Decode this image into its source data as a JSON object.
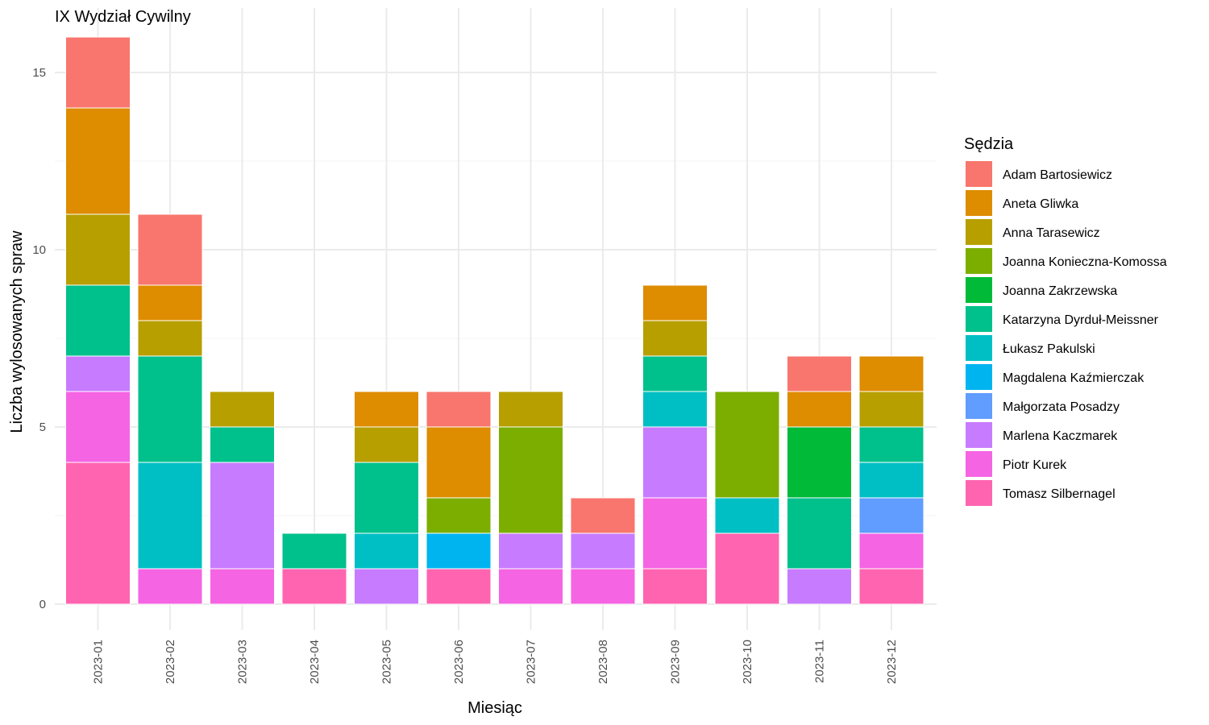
{
  "chart_data": {
    "type": "bar",
    "stacked": true,
    "title": "IX Wydział Cywilny",
    "xlabel": "Miesiąc",
    "ylabel": "Liczba wylosowanych spraw",
    "ylim": [
      0,
      16
    ],
    "yticks": [
      0,
      5,
      10,
      15
    ],
    "grid": true,
    "legend_title": "Sędzia",
    "legend_position": "right",
    "categories": [
      "2023-01",
      "2023-02",
      "2023-03",
      "2023-04",
      "2023-05",
      "2023-06",
      "2023-07",
      "2023-08",
      "2023-09",
      "2023-10",
      "2023-11",
      "2023-12"
    ],
    "series": [
      {
        "name": "Adam Bartosiewicz",
        "color": "#F8766D",
        "values": [
          2,
          2,
          0,
          0,
          0,
          1,
          0,
          1,
          0,
          0,
          1,
          0
        ]
      },
      {
        "name": "Aneta Gliwka",
        "color": "#DE8C00",
        "values": [
          3,
          1,
          0,
          0,
          1,
          2,
          0,
          0,
          1,
          0,
          1,
          1
        ]
      },
      {
        "name": "Anna Tarasewicz",
        "color": "#B79F00",
        "values": [
          2,
          1,
          1,
          0,
          1,
          0,
          1,
          0,
          1,
          0,
          0,
          1
        ]
      },
      {
        "name": "Joanna Konieczna-Komossa",
        "color": "#7CAE00",
        "values": [
          0,
          0,
          0,
          0,
          0,
          1,
          3,
          0,
          0,
          3,
          0,
          0
        ]
      },
      {
        "name": "Joanna Zakrzewska",
        "color": "#00BA38",
        "values": [
          0,
          0,
          0,
          0,
          0,
          0,
          0,
          0,
          0,
          0,
          2,
          0
        ]
      },
      {
        "name": "Katarzyna Dyrduł-Meissner",
        "color": "#00C08B",
        "values": [
          2,
          3,
          1,
          1,
          2,
          0,
          0,
          0,
          1,
          0,
          2,
          1
        ]
      },
      {
        "name": "Łukasz Pakulski",
        "color": "#00BFC4",
        "values": [
          0,
          3,
          0,
          0,
          1,
          0,
          0,
          0,
          1,
          1,
          0,
          1
        ]
      },
      {
        "name": "Magdalena Kaźmierczak",
        "color": "#00B4F0",
        "values": [
          0,
          0,
          0,
          0,
          0,
          1,
          0,
          0,
          0,
          0,
          0,
          0
        ]
      },
      {
        "name": "Małgorzata Posadzy",
        "color": "#619CFF",
        "values": [
          0,
          0,
          0,
          0,
          0,
          0,
          0,
          0,
          0,
          0,
          0,
          1
        ]
      },
      {
        "name": "Marlena Kaczmarek",
        "color": "#C77CFF",
        "values": [
          1,
          0,
          3,
          0,
          1,
          0,
          1,
          1,
          2,
          0,
          1,
          0
        ]
      },
      {
        "name": "Piotr Kurek",
        "color": "#F564E3",
        "values": [
          2,
          1,
          1,
          0,
          0,
          0,
          1,
          1,
          2,
          0,
          0,
          1
        ]
      },
      {
        "name": "Tomasz Silbernagel",
        "color": "#FF64B0",
        "values": [
          4,
          0,
          0,
          1,
          0,
          1,
          0,
          0,
          1,
          2,
          0,
          1
        ]
      }
    ]
  }
}
